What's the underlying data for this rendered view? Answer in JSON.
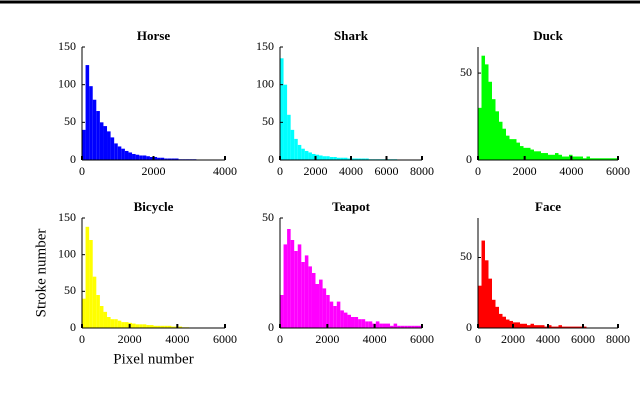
{
  "chart_data": [
    {
      "type": "histogram",
      "title": "Horse",
      "color": "#0000ff",
      "bins": [
        0,
        100,
        200,
        300,
        400,
        500,
        600,
        700,
        800,
        900,
        1000,
        1100,
        1200,
        1300,
        1400,
        1500,
        1600,
        1700,
        1800,
        1900,
        2000,
        2100,
        2200,
        2300,
        2400,
        2500,
        2600,
        2700,
        2800,
        2900,
        3000,
        3100,
        3200
      ],
      "values": [
        40,
        126,
        98,
        80,
        65,
        50,
        45,
        38,
        30,
        22,
        18,
        15,
        12,
        10,
        8,
        7,
        6,
        6,
        5,
        4,
        4,
        3,
        3,
        2,
        2,
        2,
        2,
        1,
        1,
        1,
        1,
        1
      ],
      "xlim": [
        0,
        4000
      ],
      "xticks": [
        0,
        2000,
        4000
      ],
      "ylim": [
        0,
        150
      ],
      "yticks": [
        0,
        50,
        100,
        150
      ]
    },
    {
      "type": "histogram",
      "title": "Shark",
      "color": "#00ffff",
      "bins": [
        0,
        200,
        400,
        600,
        800,
        1000,
        1200,
        1400,
        1600,
        1800,
        2000,
        2200,
        2400,
        2600,
        2800,
        3000,
        3200,
        3400,
        3600,
        3800,
        4000,
        4200,
        4400,
        4600,
        4800,
        5000,
        5200,
        5400,
        5600,
        5800,
        6000,
        6200,
        6400,
        6600
      ],
      "values": [
        135,
        100,
        60,
        40,
        28,
        20,
        15,
        12,
        10,
        8,
        7,
        6,
        5,
        5,
        4,
        4,
        3,
        3,
        3,
        2,
        2,
        2,
        2,
        2,
        2,
        1,
        1,
        1,
        1,
        1,
        1,
        1,
        1
      ],
      "xlim": [
        0,
        8000
      ],
      "xticks": [
        0,
        2000,
        4000,
        6000,
        8000
      ],
      "ylim": [
        0,
        150
      ],
      "yticks": [
        0,
        50,
        100,
        150
      ]
    },
    {
      "type": "histogram",
      "title": "Duck",
      "color": "#00ff00",
      "bins": [
        0,
        150,
        300,
        450,
        600,
        750,
        900,
        1050,
        1200,
        1350,
        1500,
        1650,
        1800,
        1950,
        2100,
        2250,
        2400,
        2550,
        2700,
        2850,
        3000,
        3150,
        3300,
        3450,
        3600,
        3750,
        3900,
        4050,
        4200,
        4350,
        4500,
        4650,
        4800,
        4950,
        5100,
        5250,
        5400,
        5550,
        5700,
        5850,
        6000
      ],
      "values": [
        30,
        60,
        55,
        45,
        35,
        28,
        22,
        18,
        14,
        12,
        12,
        10,
        8,
        7,
        7,
        6,
        5,
        5,
        4,
        4,
        3,
        3,
        4,
        3,
        2,
        2,
        3,
        2,
        2,
        2,
        1,
        2,
        1,
        1,
        1,
        1,
        1,
        1,
        1,
        1
      ],
      "xlim": [
        0,
        6000
      ],
      "xticks": [
        0,
        2000,
        4000,
        6000
      ],
      "ylim": [
        0,
        65
      ],
      "yticks": [
        0,
        50
      ]
    },
    {
      "type": "histogram",
      "title": "Bicycle",
      "color": "#ffff00",
      "x_label": "Pixel number",
      "y_label": "Stroke number",
      "bins": [
        0,
        150,
        300,
        450,
        600,
        750,
        900,
        1050,
        1200,
        1350,
        1500,
        1650,
        1800,
        1950,
        2100,
        2250,
        2400,
        2550,
        2700,
        2850,
        3000,
        3150,
        3300,
        3450,
        3600,
        3750,
        3900,
        4050,
        4200,
        4350,
        4500
      ],
      "values": [
        40,
        138,
        120,
        70,
        45,
        30,
        22,
        15,
        12,
        12,
        10,
        8,
        8,
        7,
        6,
        5,
        5,
        5,
        4,
        4,
        3,
        3,
        3,
        3,
        3,
        2,
        2,
        2,
        1,
        1
      ],
      "xlim": [
        0,
        6000
      ],
      "xticks": [
        0,
        2000,
        4000,
        6000
      ],
      "ylim": [
        0,
        150
      ],
      "yticks": [
        0,
        50,
        100,
        150
      ]
    },
    {
      "type": "histogram",
      "title": "Teapot",
      "color": "#ff00ff",
      "bins": [
        0,
        150,
        300,
        450,
        600,
        750,
        900,
        1050,
        1200,
        1350,
        1500,
        1650,
        1800,
        1950,
        2100,
        2250,
        2400,
        2550,
        2700,
        2850,
        3000,
        3150,
        3300,
        3450,
        3600,
        3750,
        3900,
        4050,
        4200,
        4350,
        4500,
        4650,
        4800,
        4950,
        5100,
        5250,
        5400,
        5550,
        5700,
        5850,
        6000
      ],
      "values": [
        15,
        38,
        45,
        40,
        35,
        38,
        30,
        33,
        28,
        25,
        20,
        22,
        18,
        15,
        12,
        10,
        12,
        8,
        7,
        6,
        5,
        5,
        4,
        4,
        3,
        3,
        2,
        3,
        2,
        2,
        2,
        1,
        2,
        1,
        1,
        1,
        1,
        1,
        1,
        1
      ],
      "xlim": [
        0,
        6000
      ],
      "xticks": [
        0,
        2000,
        4000,
        6000
      ],
      "ylim": [
        0,
        50
      ],
      "yticks": [
        0,
        50
      ]
    },
    {
      "type": "histogram",
      "title": "Face",
      "color": "#ff0000",
      "bins": [
        0,
        200,
        400,
        600,
        800,
        1000,
        1200,
        1400,
        1600,
        1800,
        2000,
        2200,
        2400,
        2600,
        2800,
        3000,
        3200,
        3400,
        3600,
        3800,
        4000,
        4200,
        4400,
        4600,
        4800,
        5000,
        5200,
        5400,
        5600,
        5800,
        6000,
        6200
      ],
      "values": [
        30,
        62,
        48,
        35,
        20,
        15,
        10,
        8,
        6,
        5,
        4,
        4,
        3,
        3,
        2,
        3,
        2,
        2,
        2,
        1,
        2,
        1,
        1,
        2,
        1,
        1,
        1,
        1,
        1,
        1,
        1
      ],
      "xlim": [
        0,
        8000
      ],
      "xticks": [
        0,
        2000,
        4000,
        6000,
        8000
      ],
      "ylim": [
        0,
        78
      ],
      "yticks": [
        0,
        50
      ]
    }
  ]
}
